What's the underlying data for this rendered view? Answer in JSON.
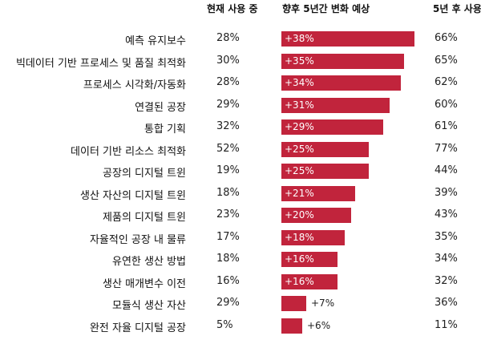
{
  "chart_data": {
    "type": "bar",
    "headers": {
      "current": "현재 사용 중",
      "change": "향후 5년간  변화 예상",
      "after": "5년 후 사용"
    },
    "categories": [
      "예측 유지보수",
      "빅데이터 기반 프로세스 및 품질 최적화",
      "프로세스 시각화/자동화",
      "연결된 공장",
      "통합 기획",
      "데이터 기반 리소스 최적화",
      "공장의 디지털 트윈",
      "생산 자산의 디지털 트윈",
      "제품의 디지털 트윈",
      "자율적인 공장 내 물류",
      "유연한 생산 방법",
      "생산 매개변수 이전",
      "모듈식 생산 자산",
      "완전 자율 디지털 공장"
    ],
    "current": [
      "28%",
      "30%",
      "28%",
      "29%",
      "32%",
      "52%",
      "19%",
      "18%",
      "23%",
      "17%",
      "18%",
      "16%",
      "29%",
      "5%"
    ],
    "change_values": [
      38,
      35,
      34,
      31,
      29,
      25,
      25,
      21,
      20,
      18,
      16,
      16,
      7,
      6
    ],
    "change_labels": [
      "+38%",
      "+35%",
      "+34%",
      "+31%",
      "+29%",
      "+25%",
      "+25%",
      "+21%",
      "+20%",
      "+18%",
      "+16%",
      "+16%",
      "+7%",
      "+6%"
    ],
    "after": [
      "66%",
      "65%",
      "62%",
      "60%",
      "61%",
      "77%",
      "44%",
      "39%",
      "43%",
      "35%",
      "34%",
      "32%",
      "36%",
      "11%"
    ],
    "bar_color": "#c1243c",
    "xlim": [
      0,
      38
    ]
  }
}
